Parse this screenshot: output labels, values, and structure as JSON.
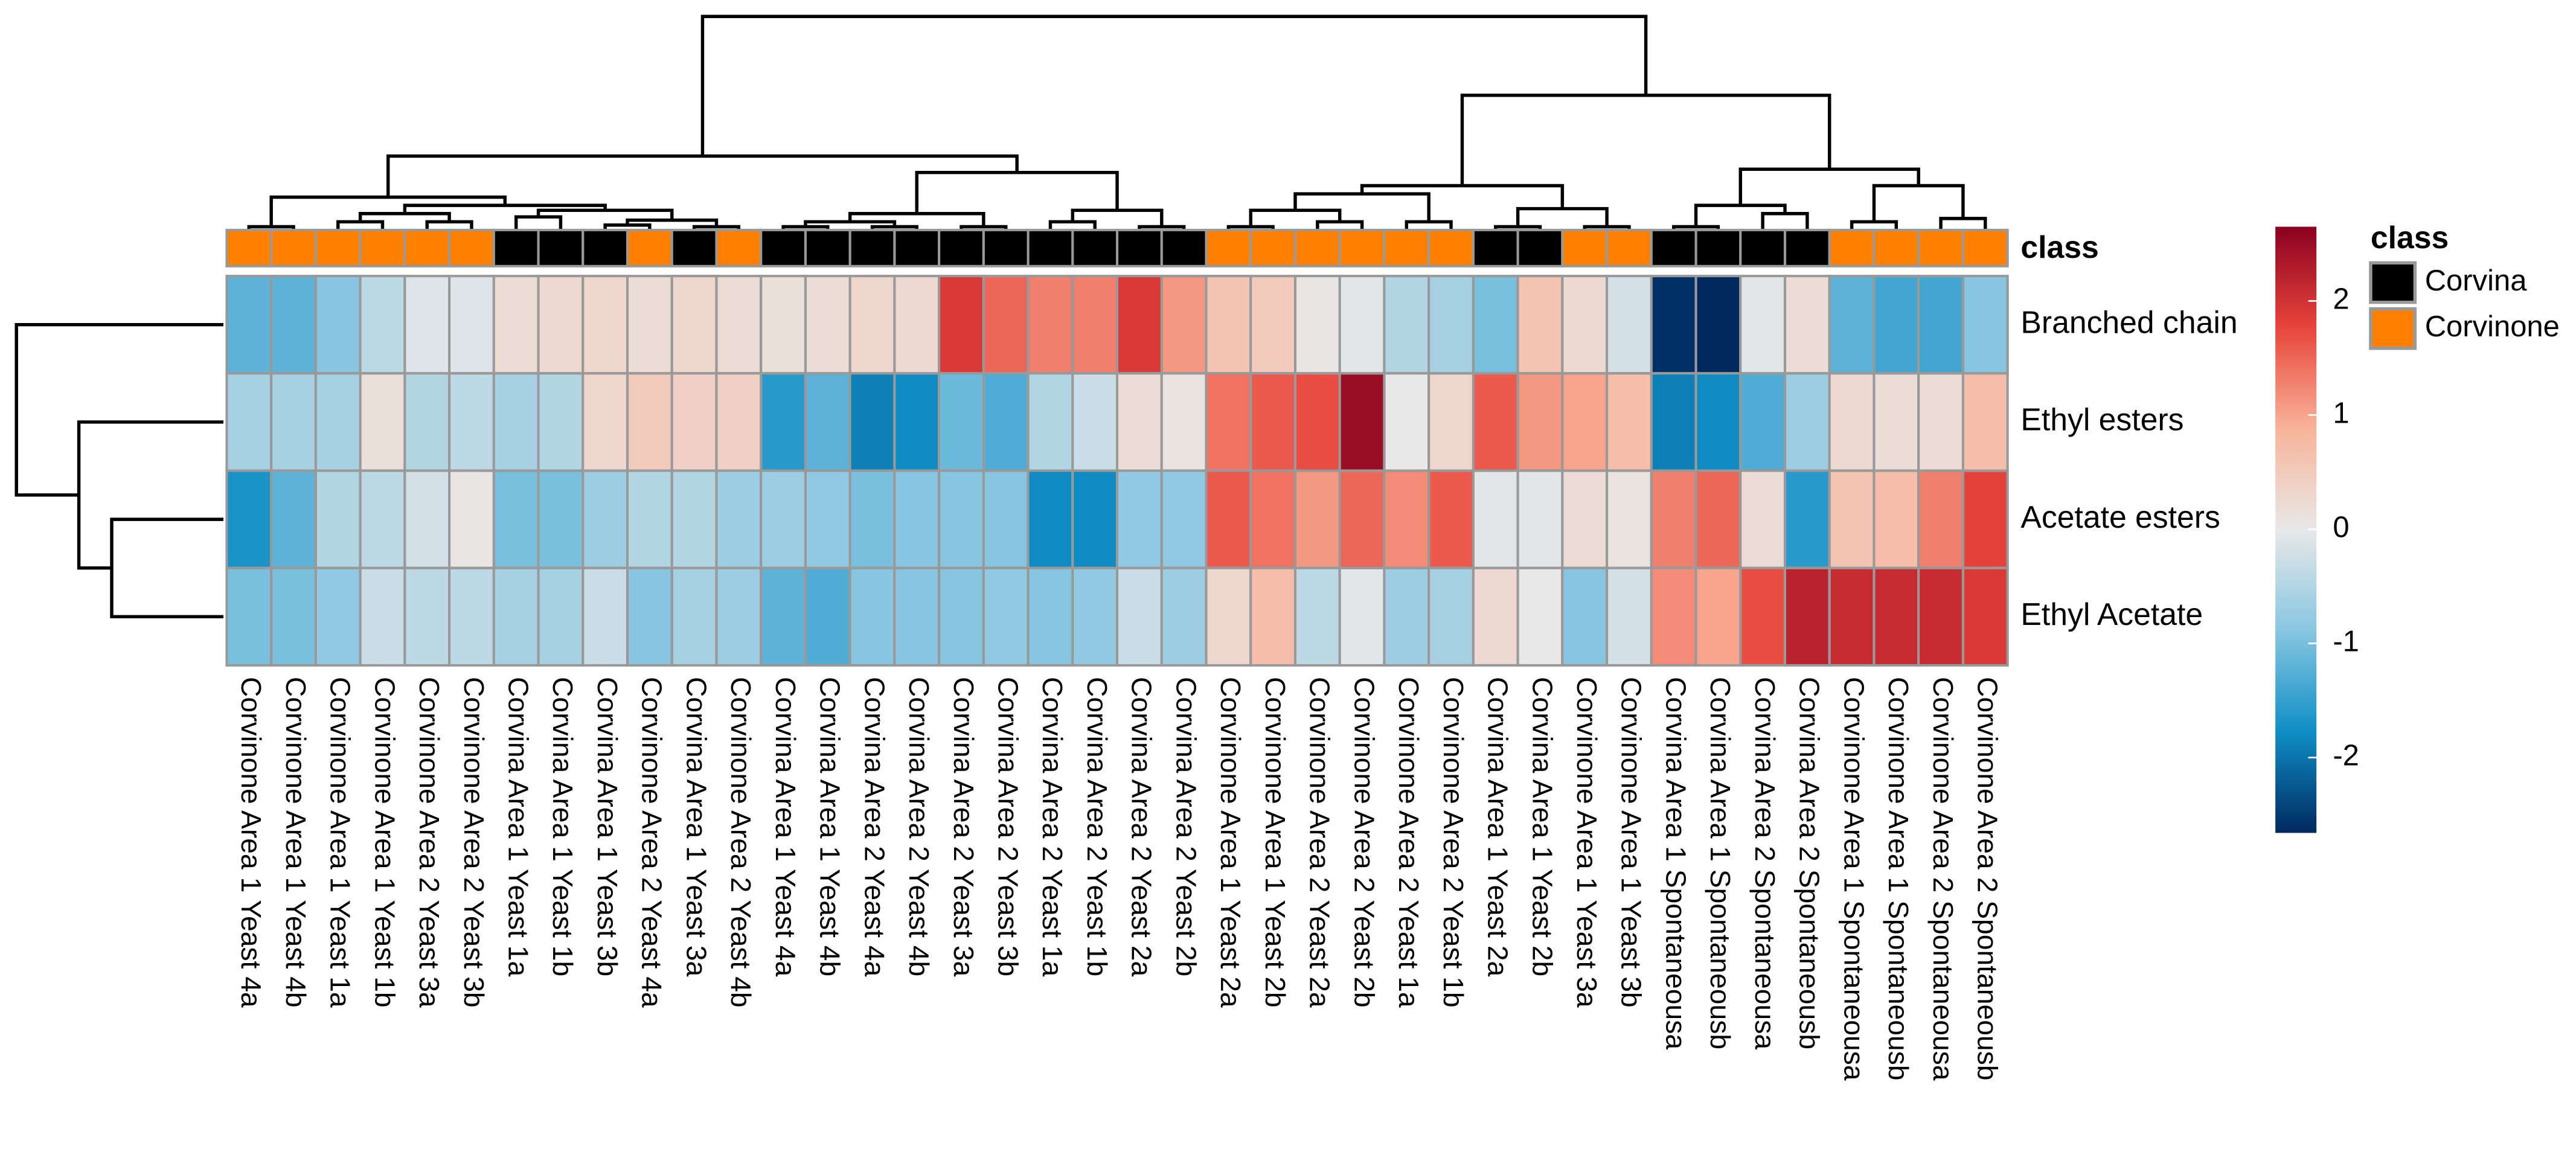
{
  "chart_data": {
    "type": "heatmap",
    "rows": [
      "Branched chain",
      "Ethyl esters",
      "Acetate esters",
      "Ethyl Acetate"
    ],
    "columns": [
      "Corvinone Area 1 Yeast 4a",
      "Corvinone Area 1 Yeast 4b",
      "Corvinone Area 1 Yeast 1a",
      "Corvinone Area 1 Yeast 1b",
      "Corvinone Area 2 Yeast 3a",
      "Corvinone Area 2 Yeast 3b",
      "Corvina Area 1 Yeast 1a",
      "Corvina Area 1 Yeast 1b",
      "Corvina Area 1 Yeast 3b",
      "Corvinone Area 2 Yeast 4a",
      "Corvina Area 1 Yeast 3a",
      "Corvinone Area 2 Yeast 4b",
      "Corvina Area 1 Yeast 4a",
      "Corvina Area 1 Yeast 4b",
      "Corvina Area 2 Yeast 4a",
      "Corvina Area 2 Yeast 4b",
      "Corvina Area 2 Yeast 3a",
      "Corvina Area 2 Yeast 3b",
      "Corvina Area 2 Yeast 1a",
      "Corvina Area 2 Yeast 1b",
      "Corvina Area 2 Yeast 2a",
      "Corvina Area 2 Yeast 2b",
      "Corvinone Area 1 Yeast 2a",
      "Corvinone Area 1 Yeast 2b",
      "Corvinone Area 2 Yeast 2a",
      "Corvinone Area 2 Yeast 2b",
      "Corvinone Area 2 Yeast 1a",
      "Corvinone Area 2 Yeast 1b",
      "Corvina Area 1 Yeast 2a",
      "Corvina Area 1 Yeast 2b",
      "Corvinone Area 1 Yeast 3a",
      "Corvinone Area 1 Yeast 3b",
      "Corvina Area 1 Spontaneousa",
      "Corvina Area 1 Spontaneousb",
      "Corvina Area 2 Spontaneousa",
      "Corvina Area 2 Spontaneousb",
      "Corvinone Area 1 Spontaneousa",
      "Corvinone Area 1 Spontaneousb",
      "Corvinone Area 2 Spontaneousa",
      "Corvinone Area 2 Spontaneousb"
    ],
    "column_classes": [
      1,
      1,
      1,
      1,
      1,
      1,
      0,
      0,
      0,
      1,
      0,
      1,
      0,
      0,
      0,
      0,
      0,
      0,
      0,
      0,
      0,
      0,
      1,
      1,
      1,
      1,
      1,
      1,
      0,
      0,
      1,
      1,
      0,
      0,
      0,
      0,
      1,
      1,
      1,
      1
    ],
    "annotation_label": "class",
    "legend_title": "class",
    "classes": [
      {
        "name": "Corvina",
        "color": "#000000"
      },
      {
        "name": "Corvinone",
        "color": "#ff7f00"
      }
    ],
    "values": [
      [
        -1.2,
        -1.2,
        -0.9,
        -0.4,
        -0.1,
        -0.1,
        0.2,
        0.25,
        0.3,
        0.2,
        0.3,
        0.2,
        0.15,
        0.2,
        0.3,
        0.25,
        1.9,
        1.5,
        1.3,
        1.3,
        1.9,
        1.1,
        0.6,
        0.5,
        0.05,
        -0.05,
        -0.5,
        -0.6,
        -1.0,
        0.6,
        0.25,
        -0.2,
        -2.6,
        -2.7,
        -0.05,
        0.2,
        -1.2,
        -1.4,
        -1.4,
        -0.9
      ],
      [
        -0.6,
        -0.6,
        -0.6,
        0.15,
        -0.5,
        -0.4,
        -0.6,
        -0.5,
        0.3,
        0.5,
        0.4,
        0.4,
        -1.6,
        -1.2,
        -1.9,
        -1.8,
        -1.1,
        -1.3,
        -0.5,
        -0.3,
        0.2,
        0.1,
        1.4,
        1.6,
        1.7,
        2.5,
        0.0,
        0.3,
        1.6,
        1.1,
        1.0,
        0.7,
        -1.9,
        -1.8,
        -1.3,
        -0.7,
        0.25,
        0.2,
        0.2,
        0.7
      ],
      [
        -1.7,
        -1.2,
        -0.5,
        -0.4,
        -0.2,
        0.05,
        -1.0,
        -1.0,
        -0.7,
        -0.5,
        -0.5,
        -0.7,
        -0.7,
        -0.8,
        -1.0,
        -0.9,
        -0.9,
        -0.9,
        -1.8,
        -1.8,
        -0.8,
        -0.8,
        1.6,
        1.4,
        1.1,
        1.5,
        1.2,
        1.6,
        -0.05,
        -0.05,
        0.2,
        0.1,
        1.3,
        1.5,
        0.2,
        -1.6,
        0.6,
        0.7,
        1.3,
        1.8
      ],
      [
        -1.0,
        -1.0,
        -0.8,
        -0.3,
        -0.4,
        -0.4,
        -0.6,
        -0.6,
        -0.3,
        -0.9,
        -0.6,
        -0.7,
        -1.2,
        -1.3,
        -0.9,
        -0.9,
        -0.9,
        -0.8,
        -0.9,
        -0.8,
        -0.3,
        -0.7,
        0.3,
        0.7,
        -0.4,
        -0.05,
        -0.7,
        -0.6,
        0.25,
        0.0,
        -0.9,
        -0.2,
        1.2,
        1.0,
        1.7,
        2.2,
        2.1,
        2.1,
        2.1,
        1.9
      ]
    ],
    "clim": [
      -2.66,
      2.65
    ],
    "cticks": [
      -2,
      -1,
      0,
      1,
      2
    ],
    "colorscale": [
      "#00295f",
      "#0f8ec6",
      "#88c6e1",
      "#e8e8e8",
      "#f9b39a",
      "#e8453b",
      "#8b0020"
    ]
  }
}
